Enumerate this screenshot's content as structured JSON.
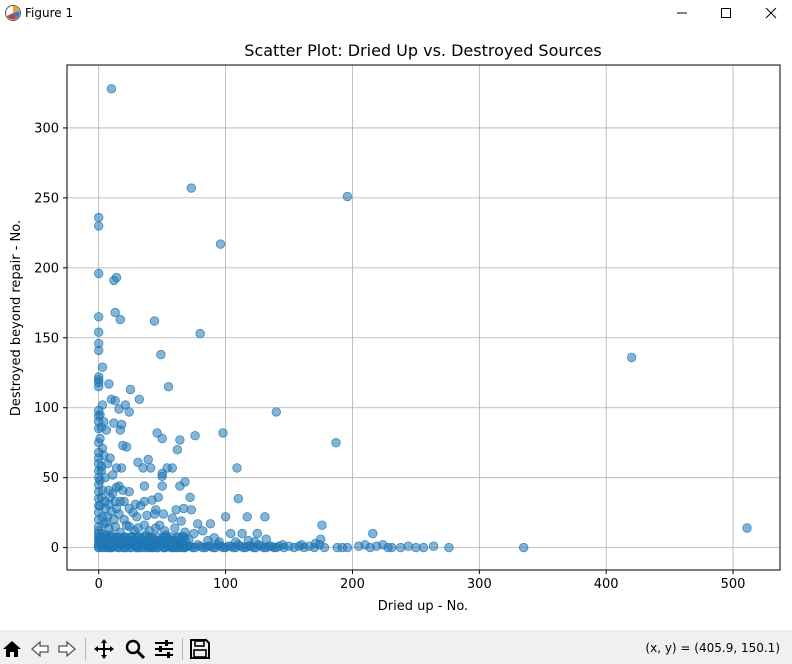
{
  "window": {
    "title": "Figure 1",
    "icons": {
      "app": "matplotlib-figure-icon",
      "minimize": "minimize-icon",
      "maximize": "maximize-icon",
      "close": "close-icon"
    }
  },
  "toolbar": {
    "buttons": [
      {
        "name": "home-icon"
      },
      {
        "name": "back-arrow-icon"
      },
      {
        "name": "forward-arrow-icon"
      },
      {
        "name": "pan-icon"
      },
      {
        "name": "zoom-icon"
      },
      {
        "name": "configure-subplots-icon"
      },
      {
        "name": "save-icon"
      }
    ],
    "coordinates": "(x, y) = (405.9, 150.1)"
  },
  "chart_data": {
    "type": "scatter",
    "title": "Scatter Plot: Dried Up vs. Destroyed Sources",
    "xlabel": "Dried up - No.",
    "ylabel": "Destroyed beyond repair - No.",
    "xlim": [
      -25,
      537
    ],
    "ylim": [
      -16,
      345
    ],
    "xticks": [
      0,
      100,
      200,
      300,
      400,
      500
    ],
    "yticks": [
      0,
      50,
      100,
      150,
      200,
      250,
      300
    ],
    "grid": true,
    "marker_color": "#1f77b4",
    "marker_alpha": 0.55,
    "points": [
      [
        10,
        328
      ],
      [
        73,
        257
      ],
      [
        196,
        251
      ],
      [
        0,
        236
      ],
      [
        0,
        230
      ],
      [
        96,
        217
      ],
      [
        0,
        196
      ],
      [
        12,
        191
      ],
      [
        14,
        193
      ],
      [
        0,
        165
      ],
      [
        13,
        168
      ],
      [
        17,
        163
      ],
      [
        44,
        162
      ],
      [
        0,
        154
      ],
      [
        80,
        153
      ],
      [
        0,
        146
      ],
      [
        0,
        141
      ],
      [
        49,
        138
      ],
      [
        3,
        129
      ],
      [
        55,
        115
      ],
      [
        0,
        122
      ],
      [
        0,
        120
      ],
      [
        0,
        118
      ],
      [
        0,
        115
      ],
      [
        8,
        117
      ],
      [
        25,
        113
      ],
      [
        10,
        106
      ],
      [
        13,
        105
      ],
      [
        32,
        106
      ],
      [
        3,
        102
      ],
      [
        16,
        99
      ],
      [
        21,
        102
      ],
      [
        24,
        97
      ],
      [
        140,
        97
      ],
      [
        0,
        98
      ],
      [
        0,
        94
      ],
      [
        0,
        90
      ],
      [
        4,
        90
      ],
      [
        12,
        89
      ],
      [
        18,
        88
      ],
      [
        17,
        84
      ],
      [
        6,
        84
      ],
      [
        0,
        85
      ],
      [
        46,
        82
      ],
      [
        50,
        78
      ],
      [
        64,
        77
      ],
      [
        76,
        80
      ],
      [
        98,
        82
      ],
      [
        19,
        73
      ],
      [
        22,
        72
      ],
      [
        187,
        75
      ],
      [
        62,
        70
      ],
      [
        0,
        75
      ],
      [
        3,
        71
      ],
      [
        0,
        68
      ],
      [
        0,
        64
      ],
      [
        4,
        66
      ],
      [
        9,
        64
      ],
      [
        39,
        63
      ],
      [
        31,
        61
      ],
      [
        35,
        57
      ],
      [
        41,
        57
      ],
      [
        54,
        57
      ],
      [
        58,
        57
      ],
      [
        109,
        57
      ],
      [
        14,
        57
      ],
      [
        18,
        57
      ],
      [
        7,
        60
      ],
      [
        0,
        60
      ],
      [
        0,
        55
      ],
      [
        2,
        55
      ],
      [
        50,
        53
      ],
      [
        50,
        51
      ],
      [
        11,
        52
      ],
      [
        0,
        50
      ],
      [
        5,
        50
      ],
      [
        68,
        47
      ],
      [
        64,
        44
      ],
      [
        36,
        44
      ],
      [
        50,
        44
      ],
      [
        16,
        44
      ],
      [
        24,
        40
      ],
      [
        14,
        43
      ],
      [
        0,
        45
      ],
      [
        0,
        40
      ],
      [
        3,
        41
      ],
      [
        8,
        41
      ],
      [
        11,
        39
      ],
      [
        19,
        41
      ],
      [
        110,
        35
      ],
      [
        47,
        36
      ],
      [
        72,
        36
      ],
      [
        36,
        33
      ],
      [
        42,
        34
      ],
      [
        29,
        31
      ],
      [
        33,
        30
      ],
      [
        20,
        33
      ],
      [
        0,
        35
      ],
      [
        0,
        30
      ],
      [
        5,
        33
      ],
      [
        8,
        31
      ],
      [
        13,
        33
      ],
      [
        17,
        33
      ],
      [
        24,
        28
      ],
      [
        45,
        27
      ],
      [
        61,
        27
      ],
      [
        67,
        28
      ],
      [
        73,
        27
      ],
      [
        51,
        24
      ],
      [
        44,
        24
      ],
      [
        38,
        23
      ],
      [
        27,
        25
      ],
      [
        30,
        22
      ],
      [
        16,
        24
      ],
      [
        10,
        26
      ],
      [
        0,
        25
      ],
      [
        3,
        22
      ],
      [
        7,
        22
      ],
      [
        20,
        20
      ],
      [
        12,
        20
      ],
      [
        58,
        21
      ],
      [
        65,
        19
      ],
      [
        78,
        17
      ],
      [
        88,
        17
      ],
      [
        100,
        22
      ],
      [
        117,
        22
      ],
      [
        131,
        22
      ],
      [
        176,
        16
      ],
      [
        48,
        16
      ],
      [
        36,
        16
      ],
      [
        24,
        15
      ],
      [
        0,
        20
      ],
      [
        0,
        15
      ],
      [
        4,
        17
      ],
      [
        8,
        14
      ],
      [
        13,
        15
      ],
      [
        17,
        11
      ],
      [
        28,
        12
      ],
      [
        40,
        12
      ],
      [
        52,
        12
      ],
      [
        68,
        11
      ],
      [
        82,
        12
      ],
      [
        104,
        10
      ],
      [
        113,
        10
      ],
      [
        125,
        10
      ],
      [
        216,
        10
      ],
      [
        0,
        12
      ],
      [
        0,
        10
      ],
      [
        3,
        10
      ],
      [
        6,
        9
      ],
      [
        10,
        9
      ],
      [
        14,
        7
      ],
      [
        21,
        7
      ],
      [
        33,
        7
      ],
      [
        43,
        6
      ],
      [
        55,
        6
      ],
      [
        71,
        6
      ],
      [
        91,
        7
      ],
      [
        118,
        5
      ],
      [
        132,
        6
      ],
      [
        175,
        6
      ],
      [
        2,
        7
      ],
      [
        0,
        6
      ],
      [
        0,
        4
      ],
      [
        0,
        2
      ],
      [
        0,
        0
      ],
      [
        2,
        3
      ],
      [
        4,
        1
      ],
      [
        6,
        5
      ],
      [
        8,
        2
      ],
      [
        10,
        0
      ],
      [
        12,
        3
      ],
      [
        15,
        1
      ],
      [
        18,
        4
      ],
      [
        21,
        0
      ],
      [
        24,
        2
      ],
      [
        27,
        4
      ],
      [
        30,
        0
      ],
      [
        33,
        2
      ],
      [
        36,
        4
      ],
      [
        39,
        0
      ],
      [
        42,
        2
      ],
      [
        46,
        0
      ],
      [
        50,
        3
      ],
      [
        54,
        1
      ],
      [
        58,
        0
      ],
      [
        62,
        2
      ],
      [
        66,
        0
      ],
      [
        70,
        1
      ],
      [
        74,
        0
      ],
      [
        78,
        2
      ],
      [
        82,
        0
      ],
      [
        86,
        1
      ],
      [
        90,
        0
      ],
      [
        94,
        2
      ],
      [
        98,
        0
      ],
      [
        102,
        1
      ],
      [
        106,
        0
      ],
      [
        110,
        2
      ],
      [
        114,
        0
      ],
      [
        118,
        1
      ],
      [
        122,
        0
      ],
      [
        126,
        2
      ],
      [
        130,
        0
      ],
      [
        134,
        1
      ],
      [
        138,
        0
      ],
      [
        142,
        1
      ],
      [
        146,
        0
      ],
      [
        150,
        1
      ],
      [
        154,
        0
      ],
      [
        158,
        1
      ],
      [
        162,
        0
      ],
      [
        166,
        1
      ],
      [
        170,
        0
      ],
      [
        174,
        2
      ],
      [
        178,
        0
      ],
      [
        188,
        0
      ],
      [
        192,
        0
      ],
      [
        196,
        0
      ],
      [
        205,
        1
      ],
      [
        210,
        2
      ],
      [
        214,
        0
      ],
      [
        219,
        1
      ],
      [
        224,
        2
      ],
      [
        228,
        0
      ],
      [
        231,
        0
      ],
      [
        238,
        0
      ],
      [
        244,
        1
      ],
      [
        250,
        0
      ],
      [
        256,
        0
      ],
      [
        264,
        1
      ],
      [
        276,
        0
      ],
      [
        335,
        0
      ],
      [
        420,
        136
      ],
      [
        511,
        14
      ],
      [
        3,
        0
      ],
      [
        7,
        0
      ],
      [
        11,
        1
      ],
      [
        16,
        0
      ],
      [
        20,
        3
      ],
      [
        25,
        0
      ],
      [
        29,
        1
      ],
      [
        34,
        0
      ],
      [
        38,
        1
      ],
      [
        43,
        0
      ],
      [
        47,
        1
      ],
      [
        52,
        0
      ],
      [
        56,
        1
      ],
      [
        60,
        0
      ],
      [
        64,
        1
      ],
      [
        68,
        0
      ],
      [
        72,
        1
      ],
      [
        76,
        0
      ],
      [
        80,
        1
      ],
      [
        84,
        0
      ],
      [
        88,
        1
      ],
      [
        92,
        0
      ],
      [
        96,
        1
      ],
      [
        100,
        0
      ],
      [
        104,
        1
      ],
      [
        108,
        0
      ],
      [
        112,
        1
      ],
      [
        116,
        0
      ],
      [
        120,
        1
      ],
      [
        124,
        0
      ],
      [
        128,
        1
      ],
      [
        132,
        0
      ],
      [
        136,
        1
      ],
      [
        140,
        0
      ],
      [
        1,
        30
      ],
      [
        2,
        36
      ],
      [
        1,
        48
      ],
      [
        2,
        58
      ],
      [
        1,
        78
      ],
      [
        2,
        86
      ],
      [
        1,
        95
      ],
      [
        5,
        28
      ],
      [
        9,
        36
      ],
      [
        6,
        18
      ],
      [
        14,
        28
      ],
      [
        22,
        16
      ],
      [
        26,
        8
      ],
      [
        31,
        14
      ],
      [
        37,
        9
      ],
      [
        45,
        14
      ],
      [
        53,
        9
      ],
      [
        60,
        14
      ],
      [
        66,
        8
      ],
      [
        75,
        10
      ],
      [
        86,
        5
      ],
      [
        95,
        4
      ],
      [
        108,
        4
      ],
      [
        123,
        4
      ],
      [
        145,
        2
      ],
      [
        160,
        2
      ],
      [
        171,
        3
      ]
    ]
  }
}
